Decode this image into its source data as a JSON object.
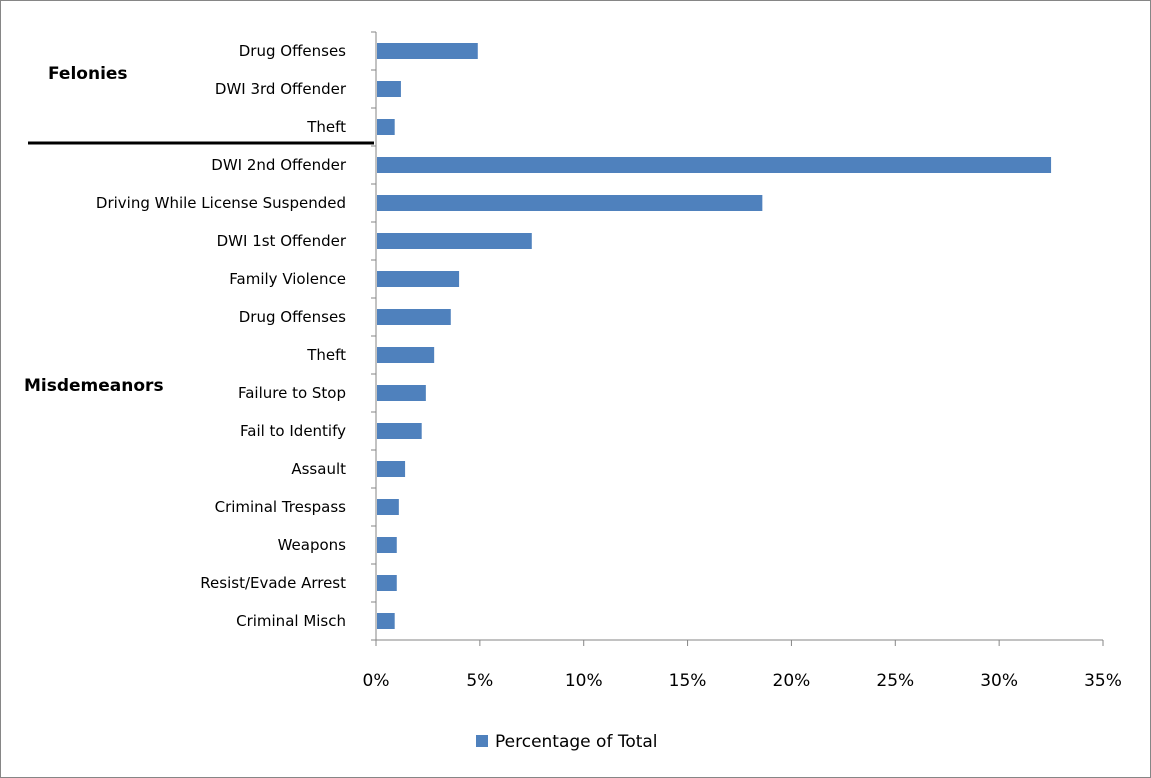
{
  "chart_data": {
    "type": "bar",
    "orientation": "horizontal",
    "categories": [
      "Drug Offenses",
      "DWI 3rd Offender",
      "Theft",
      "DWI 2nd Offender",
      "Driving While License Suspended",
      "DWI 1st Offender",
      "Family Violence",
      "Drug Offenses",
      "Theft",
      "Failure to Stop",
      "Fail to Identify",
      "Assault",
      "Criminal Trespass",
      "Weapons",
      "Resist/Evade Arrest",
      "Criminal Misch"
    ],
    "series": [
      {
        "name": "Percentage of Total",
        "color": "#4f81bd",
        "values": [
          4.9,
          1.2,
          0.9,
          32.5,
          18.6,
          7.5,
          4.0,
          3.6,
          2.8,
          2.4,
          2.2,
          1.4,
          1.1,
          1.0,
          1.0,
          0.9
        ]
      }
    ],
    "groups": [
      {
        "label": "Felonies",
        "from": 0,
        "to": 2
      },
      {
        "label": "Misdemeanors",
        "from": 3,
        "to": 15
      }
    ],
    "xlim": [
      0,
      35
    ],
    "xticks": [
      0,
      5,
      10,
      15,
      20,
      25,
      30,
      35
    ],
    "tick_suffix": "%",
    "grid": false,
    "legend_position": "bottom",
    "title": "",
    "xlabel": "",
    "ylabel": ""
  }
}
